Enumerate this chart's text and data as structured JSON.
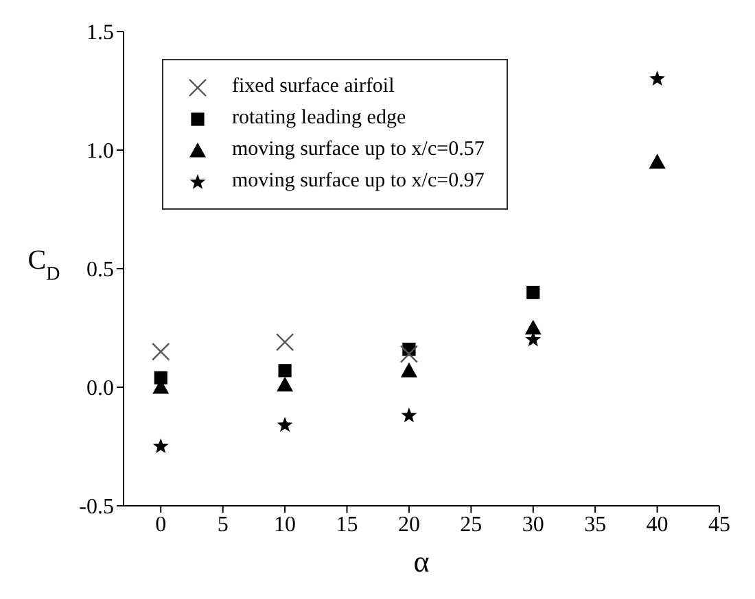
{
  "chart_data": {
    "type": "scatter",
    "xlabel": "α",
    "ylabel": "C$_{D}$",
    "series": [
      {
        "name": "fixed surface airfoil",
        "color": "#555555",
        "marker": "cross",
        "x": [
          0,
          10,
          20
        ],
        "values": [
          0.15,
          0.19,
          0.14
        ]
      },
      {
        "name": "rotating leading edge",
        "color": "#000000",
        "marker": "square",
        "x": [
          0,
          10,
          20,
          30
        ],
        "values": [
          0.04,
          0.07,
          0.16,
          0.4
        ]
      },
      {
        "name": "moving surface up to x/c=0.57",
        "color": "#000000",
        "marker": "triangle",
        "x": [
          0,
          10,
          20,
          30,
          40
        ],
        "values": [
          0.0,
          0.01,
          0.07,
          0.25,
          0.95
        ]
      },
      {
        "name": "moving surface up to x/c=0.97",
        "color": "#000000",
        "marker": "star",
        "x": [
          0,
          10,
          20,
          30,
          40
        ],
        "values": [
          -0.25,
          -0.16,
          -0.12,
          0.2,
          1.3
        ]
      }
    ],
    "xlim": [
      -3,
      45
    ],
    "xticks": [
      0,
      5,
      10,
      15,
      20,
      25,
      30,
      35,
      40,
      45
    ],
    "ylim": [
      -0.5,
      1.5
    ],
    "yticks": [
      {
        "value": -0.5,
        "label": "-0.5"
      },
      {
        "value": 0,
        "label": "0.0"
      },
      {
        "value": 0.5,
        "label": "0.5"
      },
      {
        "value": 1,
        "label": "1.0"
      },
      {
        "value": 1.5,
        "label": "1.5"
      }
    ],
    "grid": false,
    "legend": "top left"
  }
}
